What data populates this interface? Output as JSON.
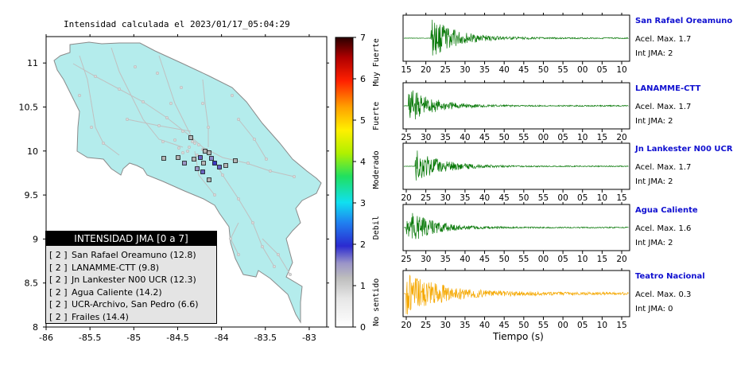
{
  "map": {
    "title": "Intensidad calculada el 2023/01/17_05:04:29",
    "lon_ticks": [
      "-86",
      "-85.5",
      "-85",
      "-84.5",
      "-84",
      "-83.5",
      "-83"
    ],
    "lat_ticks": [
      "11",
      "10.5",
      "10",
      "9.5",
      "9",
      "8.5",
      "8"
    ],
    "lon_range": [
      -86,
      -82.8
    ],
    "lat_range": [
      8,
      11.3
    ],
    "colors": {
      "land": "#b4ecec",
      "roads": "#c8c8c8",
      "frame": "#000000"
    }
  },
  "legend": {
    "title": "INTENSIDAD JMA [0 a 7]",
    "entries": [
      {
        "int": "[ 2 ]",
        "text": "San Rafael Oreamuno (12.8)"
      },
      {
        "int": "[ 2 ]",
        "text": "LANAMME-CTT (9.8)"
      },
      {
        "int": "[ 2 ]",
        "text": "Jn Lankester N00 UCR (12.3)"
      },
      {
        "int": "[ 2 ]",
        "text": "Agua Caliente (14.2)"
      },
      {
        "int": "[ 2 ]",
        "text": "UCR-Archivo, San Pedro (6.6)"
      },
      {
        "int": "[ 2 ]",
        "text": "Frailes (14.4)"
      }
    ]
  },
  "colorbar": {
    "ticks": [
      "0",
      "1",
      "2",
      "3",
      "4",
      "5",
      "6",
      "7"
    ],
    "categories": [
      "No sentido",
      "Debil",
      "Moderado",
      "Fuerte",
      "Muy Fuerte"
    ]
  },
  "stations": [
    {
      "name": "San Rafael Oreamuno",
      "acel": "Acel. Max. 1.7",
      "int": "Int JMA: 2",
      "color": "#0a7a0a",
      "ticks": [
        "15",
        "20",
        "25",
        "30",
        "35",
        "40",
        "45",
        "50",
        "55",
        "00",
        "05",
        "10"
      ],
      "arrival": 0.12,
      "amp": 1.0
    },
    {
      "name": "LANAMME-CTT",
      "acel": "Acel. Max. 1.7",
      "int": "Int JMA: 2",
      "color": "#0a7a0a",
      "ticks": [
        "25",
        "30",
        "35",
        "40",
        "45",
        "50",
        "55",
        "00",
        "05",
        "10",
        "15",
        "20"
      ],
      "arrival": 0.02,
      "amp": 0.9
    },
    {
      "name": "Jn Lankester N00 UCR",
      "acel": "Acel. Max. 1.7",
      "int": "Int JMA: 2",
      "color": "#0a7a0a",
      "ticks": [
        "20",
        "25",
        "30",
        "35",
        "40",
        "45",
        "50",
        "55",
        "00",
        "05",
        "10",
        "15"
      ],
      "arrival": 0.05,
      "amp": 0.85
    },
    {
      "name": "Agua Caliente",
      "acel": "Acel. Max. 1.6",
      "int": "Int JMA: 2",
      "color": "#0a7a0a",
      "ticks": [
        "25",
        "30",
        "35",
        "40",
        "45",
        "50",
        "55",
        "00",
        "05",
        "10",
        "15",
        "20"
      ],
      "arrival": 0.01,
      "amp": 0.9
    },
    {
      "name": "Teatro Nacional",
      "acel": "Acel. Max. 0.3",
      "int": "Int JMA: 0",
      "color": "#f5a800",
      "ticks": [
        "20",
        "25",
        "30",
        "35",
        "40",
        "45",
        "50",
        "55",
        "00",
        "05",
        "10",
        "15"
      ],
      "arrival": 0.01,
      "amp": 1.0
    }
  ],
  "xlabel": "Tiempo (s)"
}
